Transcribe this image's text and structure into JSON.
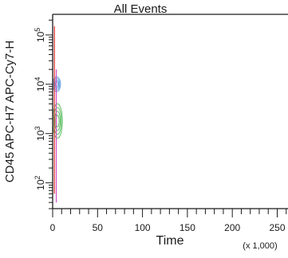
{
  "chart_data": {
    "type": "scatter",
    "title": "All Events",
    "xlabel": "Time",
    "x_multiplier_label": "(x 1,000)",
    "ylabel": "CD45 APC-H7 APC-Cy7-H",
    "y_scale": "log",
    "xlim": [
      0,
      262
    ],
    "ylim": [
      30,
      262000
    ],
    "x_ticks": [
      0,
      50,
      100,
      150,
      200,
      250
    ],
    "x_tick_labels": [
      "0",
      "50",
      "100",
      "150",
      "200",
      "250"
    ],
    "y_ticks": [
      100,
      1000,
      10000,
      100000
    ],
    "y_tick_labels": [
      {
        "base": "10",
        "exp": "2"
      },
      {
        "base": "10",
        "exp": "3"
      },
      {
        "base": "10",
        "exp": "4"
      },
      {
        "base": "10",
        "exp": "5"
      }
    ],
    "grid": false,
    "populations": [
      {
        "color": "#4a90d9",
        "x_range": [
          0,
          7
        ],
        "y_center": 10000,
        "y_range": [
          7000,
          14000
        ]
      },
      {
        "color": "#3cb043",
        "x_range": [
          0,
          9
        ],
        "y_center": 1800,
        "y_range": [
          800,
          4000
        ]
      }
    ],
    "colors": {
      "axis": "#1a1a1a",
      "events_red": "#e03030",
      "events_magenta": "#d040c0"
    }
  }
}
